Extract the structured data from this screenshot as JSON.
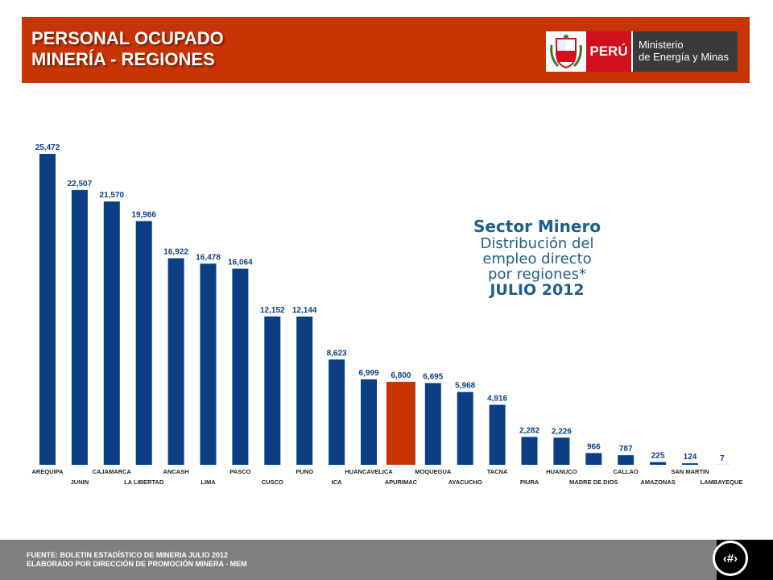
{
  "header": {
    "title_line1": "PERSONAL OCUPADO",
    "title_line2": "MINERÍA - REGIONES",
    "logo": {
      "country": "PERÚ",
      "ministry_line1": "Ministerio",
      "ministry_line2": "de Energía y Minas",
      "shield_icon": "peru-coat-of-arms-icon"
    }
  },
  "annotation": {
    "title": "Sector Minero",
    "line1": "Distribución  del",
    "line2": "empleo directo",
    "line3": "por regiones*",
    "date": "JULIO 2012"
  },
  "footer": {
    "line1": "FUENTE: BOLETIN ESTADÍSTICO DE MINERIA JULIO 2012",
    "line2": "ELABORADO POR DIRECCIÓN DE PROMOCIÓN MINERA  - MEM",
    "page_number": "‹#›"
  },
  "chart_data": {
    "type": "bar",
    "categories": [
      "AREQUIPA",
      "JUNIN",
      "CAJAMARCA",
      "LA LIBERTAD",
      "ANCASH",
      "LIMA",
      "PASCO",
      "CUSCO",
      "PUNO",
      "ICA",
      "HUANCAVELICA",
      "APURIMAC",
      "MOQUEGUA",
      "AYACUCHO",
      "TACNA",
      "PIURA",
      "HUANUCO",
      "MADRE DE DIOS",
      "CALLAO",
      "AMAZONAS",
      "SAN MARTIN",
      "LAMBAYEQUE"
    ],
    "values": [
      25472,
      22507,
      21570,
      19966,
      16922,
      16478,
      16064,
      12152,
      12144,
      8623,
      6999,
      6800,
      6695,
      5968,
      4916,
      2282,
      2226,
      966,
      787,
      225,
      124,
      7
    ],
    "value_labels": [
      "25,472",
      "22,507",
      "21,570",
      "19,966",
      "16,922",
      "16,478",
      "16,064",
      "12,152",
      "12,144",
      "8,623",
      "6,999",
      "6,800",
      "6,695",
      "5,968",
      "4,916",
      "2,282",
      "2,226",
      "966",
      "787",
      "225",
      "124",
      "7"
    ],
    "highlight_category": "APURIMAC",
    "bar_color": "#0b3f85",
    "highlight_color": "#c93405",
    "ylim": [
      0,
      25472
    ],
    "grid": false,
    "legend": "none"
  }
}
